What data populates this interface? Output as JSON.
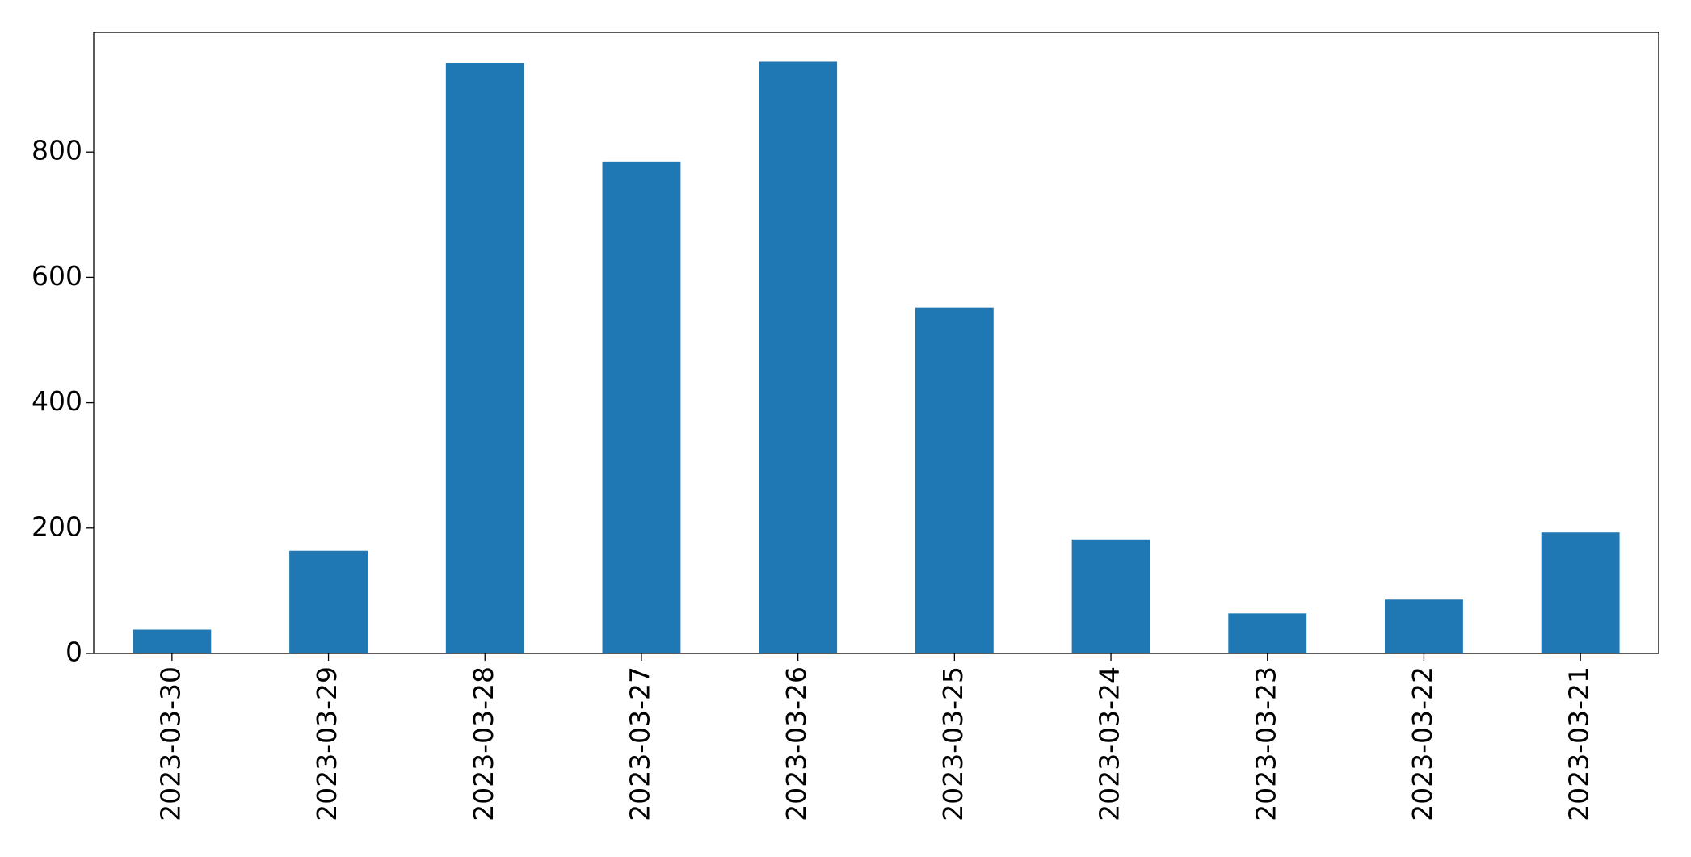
{
  "chart_data": {
    "type": "bar",
    "categories": [
      "2023-03-30",
      "2023-03-29",
      "2023-03-28",
      "2023-03-27",
      "2023-03-26",
      "2023-03-25",
      "2023-03-24",
      "2023-03-23",
      "2023-03-22",
      "2023-03-21"
    ],
    "values": [
      38,
      164,
      942,
      785,
      944,
      552,
      182,
      64,
      86,
      193
    ],
    "color": "#1f77b4",
    "ylim": [
      0,
      991
    ],
    "yticks": [
      0,
      200,
      400,
      600,
      800
    ],
    "grid": false
  }
}
